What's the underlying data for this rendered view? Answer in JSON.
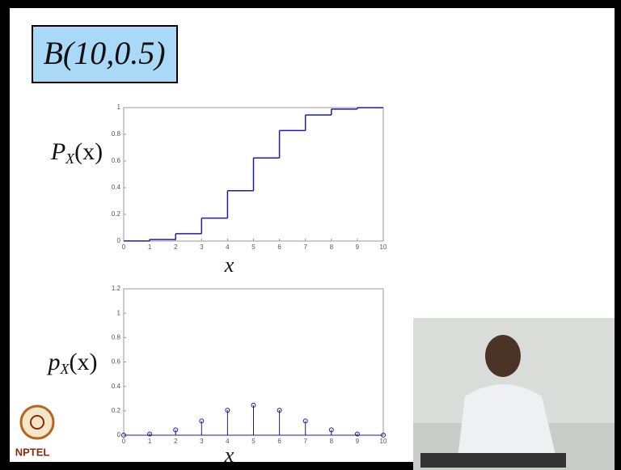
{
  "title": "B(10,0.5)",
  "logo": "NPTEL",
  "chart_data": [
    {
      "type": "step",
      "x": [
        0,
        1,
        2,
        3,
        4,
        5,
        6,
        7,
        8,
        9,
        10
      ],
      "values": [
        0.001,
        0.011,
        0.055,
        0.172,
        0.377,
        0.623,
        0.828,
        0.945,
        0.989,
        0.999,
        1
      ],
      "color": "#1c1ca8",
      "xlim": [
        0,
        10
      ],
      "ylim": [
        0,
        1
      ],
      "xticks": [
        0,
        1,
        2,
        3,
        4,
        5,
        6,
        7,
        8,
        9,
        10
      ],
      "yticks": [
        0,
        0.2,
        0.4,
        0.6,
        0.8,
        1
      ],
      "xlabel": "x",
      "ylabel": {
        "symbol": "P",
        "subscript": "X",
        "argument": "(x)"
      }
    },
    {
      "type": "stem",
      "x": [
        0,
        1,
        2,
        3,
        4,
        5,
        6,
        7,
        8,
        9,
        10
      ],
      "values": [
        0.001,
        0.01,
        0.044,
        0.117,
        0.205,
        0.246,
        0.205,
        0.117,
        0.044,
        0.01,
        0.001
      ],
      "color": "#1c1ca8",
      "xlim": [
        0,
        10
      ],
      "ylim": [
        0,
        1.2
      ],
      "xticks": [
        0,
        1,
        2,
        3,
        4,
        5,
        6,
        7,
        8,
        9,
        10
      ],
      "yticks": [
        0,
        0.2,
        0.4,
        0.6,
        0.8,
        1,
        1.2
      ],
      "xlabel": "x",
      "ylabel": {
        "symbol": "p",
        "subscript": "X",
        "argument": "(x)"
      }
    }
  ]
}
